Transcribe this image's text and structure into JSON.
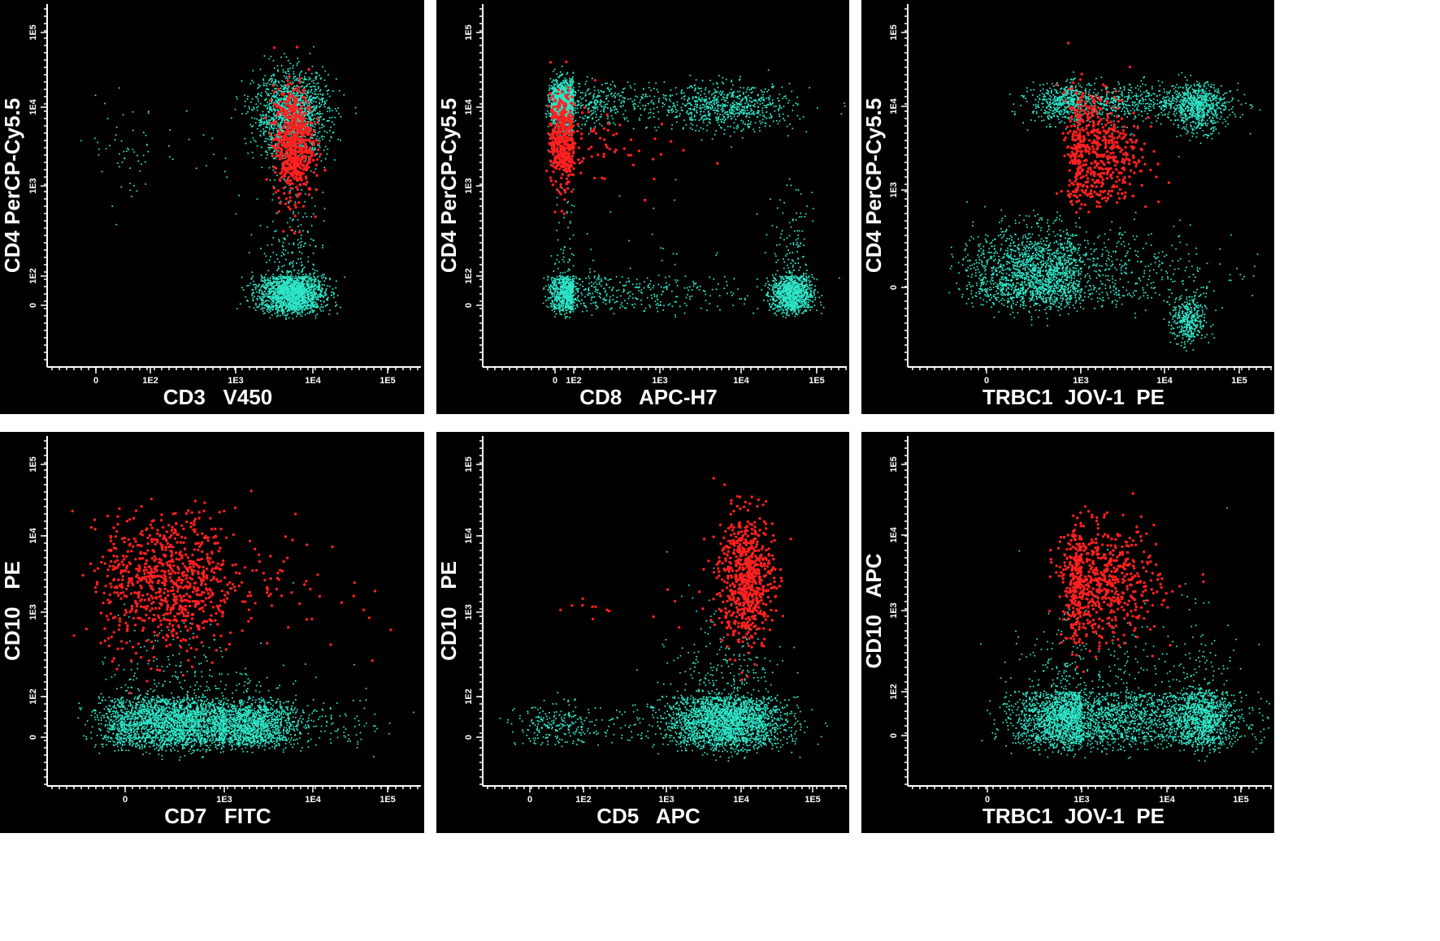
{
  "colors": {
    "background": "#000000",
    "population": "#2ee6c8",
    "highlight": "#ff2020",
    "axis": "#ffffff"
  },
  "chart_data": [
    {
      "type": "scatter",
      "xlabel": "CD3   V450",
      "ylabel": "CD4 PerCP-Cy5.5",
      "x_ticks": [
        "0",
        "1E2",
        "1E3",
        "1E4",
        "1E5"
      ],
      "y_ticks": [
        "0",
        "1E2",
        "1E3",
        "1E4",
        "1E5"
      ],
      "x_scale": "biexponential",
      "y_scale": "biexponential",
      "series": [
        {
          "clusters": [
            {
              "x": [
                3.25,
                4.2
              ],
              "y": [
                3.35,
                4.45
              ],
              "n": 1600
            },
            {
              "x": [
                3.3,
                4.15
              ],
              "y": [
                -0.8,
                2.6
              ],
              "n": 2000
            },
            {
              "x": [
                -0.6,
                3.3
              ],
              "y": [
                2.8,
                4.1
              ],
              "n": 70
            }
          ]
        },
        {
          "clusters": [
            {
              "x": [
                3.5,
                4.0
              ],
              "y": [
                2.85,
                4.25
              ],
              "n": 650
            }
          ]
        }
      ]
    },
    {
      "type": "scatter",
      "xlabel": "CD8   APC-H7",
      "ylabel": "CD4 PerCP-Cy5.5",
      "x_ticks": [
        "0",
        "1E2",
        "1E3",
        "1E4",
        "1E5"
      ],
      "y_ticks": [
        "0",
        "1E2",
        "1E3",
        "1E4",
        "1E5"
      ],
      "x_scale": "biexponential",
      "y_scale": "biexponential",
      "series": [
        {
          "clusters": [
            {
              "x": [
                -0.8,
                3.1
              ],
              "y": [
                3.75,
                4.35
              ],
              "n": 1700
            },
            {
              "x": [
                3.0,
                4.7
              ],
              "y": [
                3.7,
                4.3
              ],
              "n": 700
            },
            {
              "x": [
                -0.8,
                3.8
              ],
              "y": [
                -0.7,
                2.5
              ],
              "n": 1100
            },
            {
              "x": [
                4.4,
                4.95
              ],
              "y": [
                -0.8,
                2.6
              ],
              "n": 1100
            }
          ]
        },
        {
          "clusters": [
            {
              "x": [
                -0.8,
                2.6
              ],
              "y": [
                3.0,
                4.15
              ],
              "n": 500
            }
          ]
        }
      ]
    },
    {
      "type": "scatter",
      "xlabel": "TRBC1  JOV-1  PE",
      "ylabel": "CD4 PerCP-Cy5.5",
      "x_ticks": [
        "0",
        "1E3",
        "1E4",
        "1E5"
      ],
      "y_ticks": [
        "0",
        "1E3",
        "1E4",
        "1E5"
      ],
      "x_scale": "biexponential",
      "y_scale": "biexponential",
      "series": [
        {
          "clusters": [
            {
              "x": [
                1.5,
                4.7
              ],
              "y": [
                3.8,
                4.3
              ],
              "n": 1100
            },
            {
              "x": [
                4.1,
                4.8
              ],
              "y": [
                3.7,
                4.3
              ],
              "n": 700
            },
            {
              "x": [
                -0.6,
                4.3
              ],
              "y": [
                -1.0,
                1.8
              ],
              "n": 2200
            },
            {
              "x": [
                4.1,
                4.55
              ],
              "y": [
                -3.0,
                -0.5
              ],
              "n": 400
            }
          ]
        },
        {
          "clusters": [
            {
              "x": [
                2.6,
                3.7
              ],
              "y": [
                2.7,
                4.25
              ],
              "n": 600
            }
          ]
        }
      ]
    },
    {
      "type": "scatter",
      "xlabel": "CD7   FITC",
      "ylabel": "CD10   PE",
      "x_ticks": [
        "0",
        "1E3",
        "1E4",
        "1E5"
      ],
      "y_ticks": [
        "0",
        "1E2",
        "1E3",
        "1E4",
        "1E5"
      ],
      "x_scale": "biexponential",
      "y_scale": "biexponential",
      "series": [
        {
          "clusters": [
            {
              "x": [
                -1.0,
                4.1
              ],
              "y": [
                -0.8,
                2.3
              ],
              "n": 3000
            },
            {
              "x": [
                2.8,
                3.8
              ],
              "y": [
                -0.7,
                1.9
              ],
              "n": 1200
            }
          ]
        },
        {
          "clusters": [
            {
              "x": [
                -1.0,
                3.8
              ],
              "y": [
                2.5,
                4.3
              ],
              "n": 900
            }
          ]
        }
      ]
    },
    {
      "type": "scatter",
      "xlabel": "CD5   APC",
      "ylabel": "CD10   PE",
      "x_ticks": [
        "0",
        "1E2",
        "1E3",
        "1E4",
        "1E5"
      ],
      "y_ticks": [
        "0",
        "1E2",
        "1E3",
        "1E4",
        "1E5"
      ],
      "x_scale": "biexponential",
      "y_scale": "biexponential",
      "series": [
        {
          "clusters": [
            {
              "x": [
                3.0,
                4.6
              ],
              "y": [
                -0.8,
                2.5
              ],
              "n": 2600
            },
            {
              "x": [
                -0.8,
                3.5
              ],
              "y": [
                -0.6,
                1.6
              ],
              "n": 300
            }
          ]
        },
        {
          "clusters": [
            {
              "x": [
                3.7,
                4.45
              ],
              "y": [
                2.6,
                4.3
              ],
              "n": 700
            },
            {
              "x": [
                1.0,
                3.5
              ],
              "y": [
                2.9,
                3.3
              ],
              "n": 15
            }
          ]
        }
      ]
    },
    {
      "type": "scatter",
      "xlabel": "TRBC1  JOV-1  PE",
      "ylabel": "CD10   APC",
      "x_ticks": [
        "0",
        "1E3",
        "1E4",
        "1E5"
      ],
      "y_ticks": [
        "0",
        "1E2",
        "1E3",
        "1E4",
        "1E5"
      ],
      "x_scale": "biexponential",
      "y_scale": "biexponential",
      "series": [
        {
          "clusters": [
            {
              "x": [
                1.0,
                4.9
              ],
              "y": [
                -0.8,
                2.5
              ],
              "n": 3200
            },
            {
              "x": [
                4.1,
                4.9
              ],
              "y": [
                -0.8,
                2.5
              ],
              "n": 900
            }
          ]
        },
        {
          "clusters": [
            {
              "x": [
                2.4,
                3.9
              ],
              "y": [
                2.6,
                4.1
              ],
              "n": 750
            }
          ]
        }
      ]
    }
  ]
}
